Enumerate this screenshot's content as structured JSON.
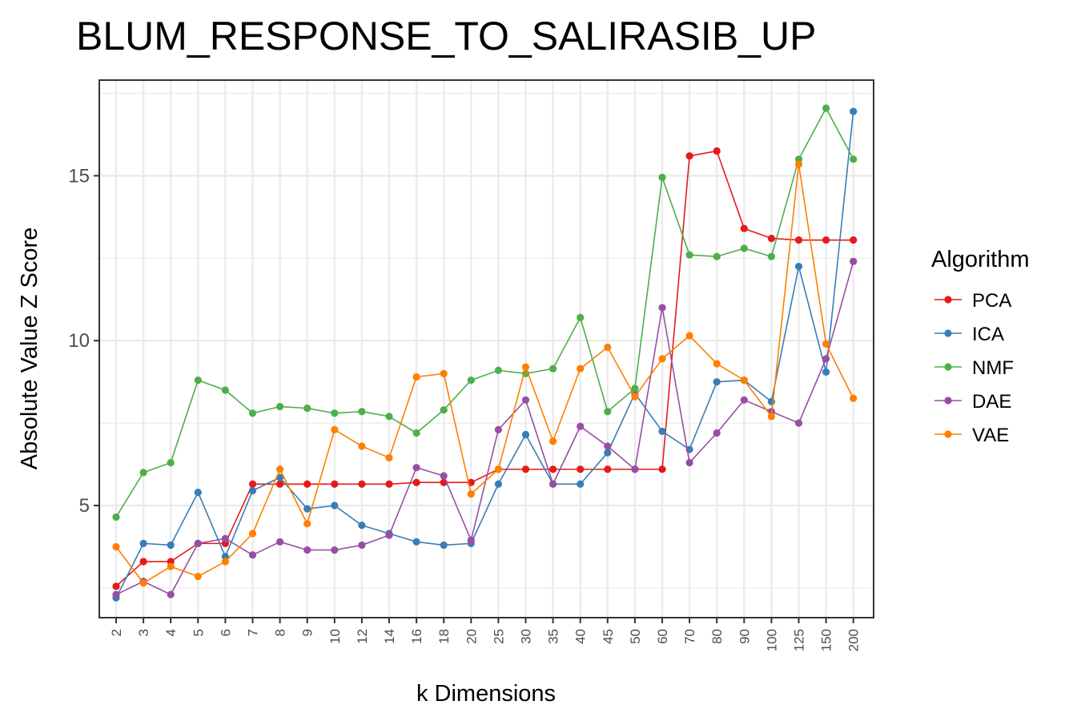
{
  "chart_data": {
    "type": "line",
    "title": "BLUM_RESPONSE_TO_SALIRASIB_UP",
    "xlabel": "k Dimensions",
    "ylabel": "Absolute Value Z Score",
    "categories": [
      "2",
      "3",
      "4",
      "5",
      "6",
      "7",
      "8",
      "9",
      "10",
      "12",
      "14",
      "16",
      "18",
      "20",
      "25",
      "30",
      "35",
      "40",
      "45",
      "50",
      "60",
      "70",
      "80",
      "90",
      "100",
      "125",
      "150",
      "200"
    ],
    "ylim": [
      1.6,
      17.9
    ],
    "yticks": [
      5,
      10,
      15
    ],
    "grid": true,
    "legend": {
      "title": "Algorithm",
      "position": "right"
    },
    "series": [
      {
        "name": "PCA",
        "color": "#e41a1c",
        "values": [
          2.55,
          3.3,
          3.3,
          3.85,
          3.85,
          5.65,
          5.65,
          5.65,
          5.65,
          5.65,
          5.65,
          5.7,
          5.7,
          5.7,
          6.1,
          6.1,
          6.1,
          6.1,
          6.1,
          6.1,
          6.1,
          15.6,
          15.75,
          13.4,
          13.1,
          13.05,
          13.05,
          13.05
        ]
      },
      {
        "name": "ICA",
        "color": "#377eb8",
        "values": [
          2.2,
          3.85,
          3.8,
          5.4,
          3.45,
          5.45,
          5.85,
          4.9,
          5.0,
          4.4,
          4.15,
          3.9,
          3.8,
          3.85,
          5.65,
          7.15,
          5.65,
          5.65,
          6.6,
          8.4,
          7.25,
          6.7,
          8.75,
          8.8,
          8.15,
          12.25,
          9.05,
          16.95
        ]
      },
      {
        "name": "NMF",
        "color": "#4daf4a",
        "values": [
          4.65,
          6.0,
          6.3,
          8.8,
          8.5,
          7.8,
          8.0,
          7.95,
          7.8,
          7.85,
          7.7,
          7.2,
          7.9,
          8.8,
          9.1,
          9.0,
          9.15,
          10.7,
          7.85,
          8.55,
          14.95,
          12.6,
          12.55,
          12.8,
          12.55,
          15.5,
          17.05,
          15.5
        ]
      },
      {
        "name": "DAE",
        "color": "#984ea3",
        "values": [
          2.3,
          2.7,
          2.3,
          3.85,
          4.0,
          3.5,
          3.9,
          3.65,
          3.65,
          3.8,
          4.1,
          6.15,
          5.9,
          3.95,
          7.3,
          8.2,
          5.65,
          7.4,
          6.8,
          6.1,
          11.0,
          6.3,
          7.2,
          8.2,
          7.85,
          7.5,
          9.45,
          12.4
        ]
      },
      {
        "name": "VAE",
        "color": "#ff7f00",
        "values": [
          3.75,
          2.65,
          3.15,
          2.85,
          3.3,
          4.15,
          6.1,
          4.45,
          7.3,
          6.8,
          6.45,
          8.9,
          9.0,
          5.35,
          6.1,
          9.2,
          6.95,
          9.15,
          9.8,
          8.3,
          9.45,
          10.15,
          9.3,
          8.8,
          7.7,
          15.35,
          9.9,
          8.25
        ]
      }
    ]
  }
}
